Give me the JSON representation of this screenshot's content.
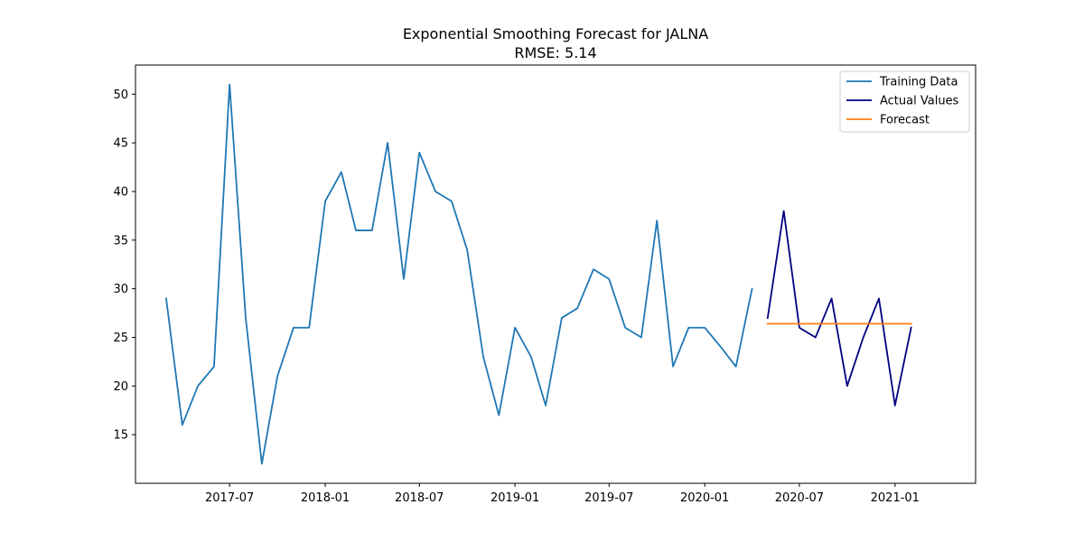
{
  "chart_data": {
    "type": "line",
    "title": "Exponential Smoothing Forecast for JALNA",
    "subtitle": "RMSE: 5.14",
    "xlabel": "",
    "ylabel": "",
    "ylim": [
      10,
      53
    ],
    "xlim": [
      "2017-01-01",
      "2021-06-05"
    ],
    "x_ticks": [
      "2017-07",
      "2018-01",
      "2018-07",
      "2019-01",
      "2019-07",
      "2020-01",
      "2020-07",
      "2021-01"
    ],
    "y_ticks": [
      15,
      20,
      25,
      30,
      35,
      40,
      45,
      50
    ],
    "grid": false,
    "legend_position": "top-right",
    "series": [
      {
        "name": "Training Data",
        "color": "#1f77b4",
        "x": [
          "2017-03",
          "2017-04",
          "2017-05",
          "2017-06",
          "2017-07",
          "2017-08",
          "2017-09",
          "2017-10",
          "2017-11",
          "2017-12",
          "2018-01",
          "2018-02",
          "2018-03",
          "2018-04",
          "2018-05",
          "2018-06",
          "2018-07",
          "2018-08",
          "2018-09",
          "2018-10",
          "2018-11",
          "2018-12",
          "2019-01",
          "2019-02",
          "2019-03",
          "2019-04",
          "2019-05",
          "2019-06",
          "2019-07",
          "2019-08",
          "2019-09",
          "2019-10",
          "2019-11",
          "2019-12",
          "2020-01",
          "2020-02",
          "2020-03",
          "2020-04",
          "2020-05"
        ],
        "values": [
          29,
          16,
          20,
          22,
          51,
          27,
          12,
          21,
          26,
          26,
          39,
          42,
          36,
          36,
          45,
          31,
          44,
          40,
          39,
          34,
          23,
          17,
          26,
          23,
          18,
          27,
          28,
          32,
          31,
          26,
          25,
          37,
          22,
          26,
          26,
          24,
          22,
          30,
          null
        ]
      },
      {
        "name": "Actual Values",
        "color": "#000080",
        "x": [
          "2020-05",
          "2020-06",
          "2020-07",
          "2020-08",
          "2020-09",
          "2020-10",
          "2020-11",
          "2020-12",
          "2021-01",
          "2021-02"
        ],
        "values": [
          27,
          38,
          26,
          25,
          29,
          20,
          25,
          29,
          18,
          26
        ]
      },
      {
        "name": "Forecast",
        "color": "#ff7f0e",
        "x": [
          "2020-05",
          "2020-06",
          "2020-07",
          "2020-08",
          "2020-09",
          "2020-10",
          "2020-11",
          "2020-12",
          "2021-01",
          "2021-02"
        ],
        "values": [
          26.4,
          26.4,
          26.4,
          26.4,
          26.4,
          26.4,
          26.4,
          26.4,
          26.4,
          26.4
        ]
      }
    ]
  }
}
